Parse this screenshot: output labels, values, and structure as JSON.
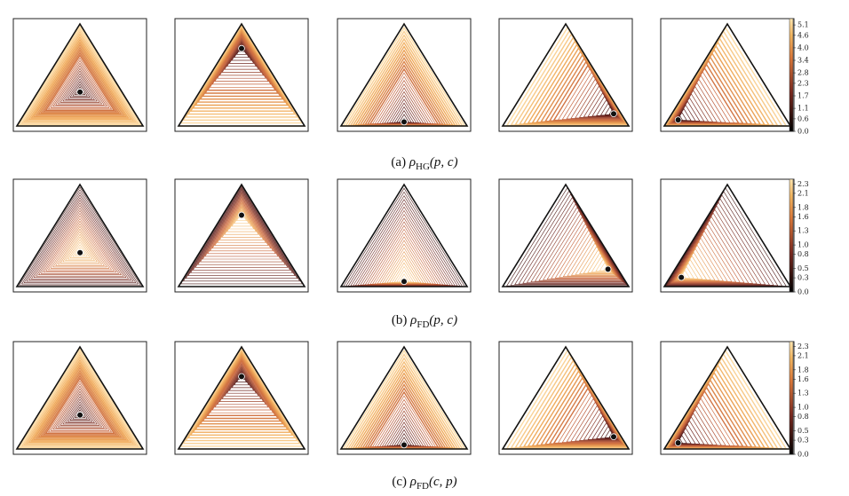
{
  "figure": {
    "rows": [
      {
        "caption": {
          "label": "(a)",
          "symbol": "ρ",
          "subscript": "HG",
          "args": "(p, c)"
        },
        "colorbar_ticks": [
          "5.1",
          "4.6",
          "4.0",
          "3.4",
          "2.8",
          "2.3",
          "1.7",
          "1.1",
          "0.6",
          "0.0"
        ],
        "colorbar_max": 5.4,
        "panels": [
          {
            "point": [
              0.333,
              0.333,
              0.334
            ]
          },
          {
            "point": [
              0.76,
              0.12,
              0.12
            ]
          },
          {
            "point": [
              0.04,
              0.48,
              0.48
            ]
          },
          {
            "point": [
              0.12,
              0.06,
              0.82
            ]
          },
          {
            "point": [
              0.06,
              0.86,
              0.08
            ]
          }
        ]
      },
      {
        "caption": {
          "label": "(b)",
          "symbol": "ρ",
          "subscript": "FD",
          "args": "(p, c)"
        },
        "colorbar_ticks": [
          "2.3",
          "2.1",
          "1.8",
          "1.6",
          "1.3",
          "1.0",
          "0.8",
          "0.5",
          "0.3",
          "0.0"
        ],
        "colorbar_max": 2.4,
        "panels": [
          {
            "point": [
              0.333,
              0.333,
              0.334
            ]
          },
          {
            "point": [
              0.7,
              0.15,
              0.15
            ]
          },
          {
            "point": [
              0.05,
              0.475,
              0.475
            ]
          },
          {
            "point": [
              0.17,
              0.08,
              0.75
            ]
          },
          {
            "point": [
              0.09,
              0.82,
              0.09
            ]
          }
        ]
      },
      {
        "caption": {
          "label": "(c)",
          "symbol": "ρ",
          "subscript": "FD",
          "args": "(c, p)"
        },
        "colorbar_ticks": [
          "2.3",
          "2.1",
          "1.8",
          "1.6",
          "1.3",
          "1.0",
          "0.8",
          "0.5",
          "0.3",
          "0.0"
        ],
        "colorbar_max": 2.4,
        "panels": [
          {
            "point": [
              0.333,
              0.333,
              0.334
            ]
          },
          {
            "point": [
              0.71,
              0.145,
              0.145
            ]
          },
          {
            "point": [
              0.04,
              0.48,
              0.48
            ]
          },
          {
            "point": [
              0.12,
              0.06,
              0.82
            ]
          },
          {
            "point": [
              0.06,
              0.86,
              0.08
            ]
          }
        ]
      }
    ]
  }
}
